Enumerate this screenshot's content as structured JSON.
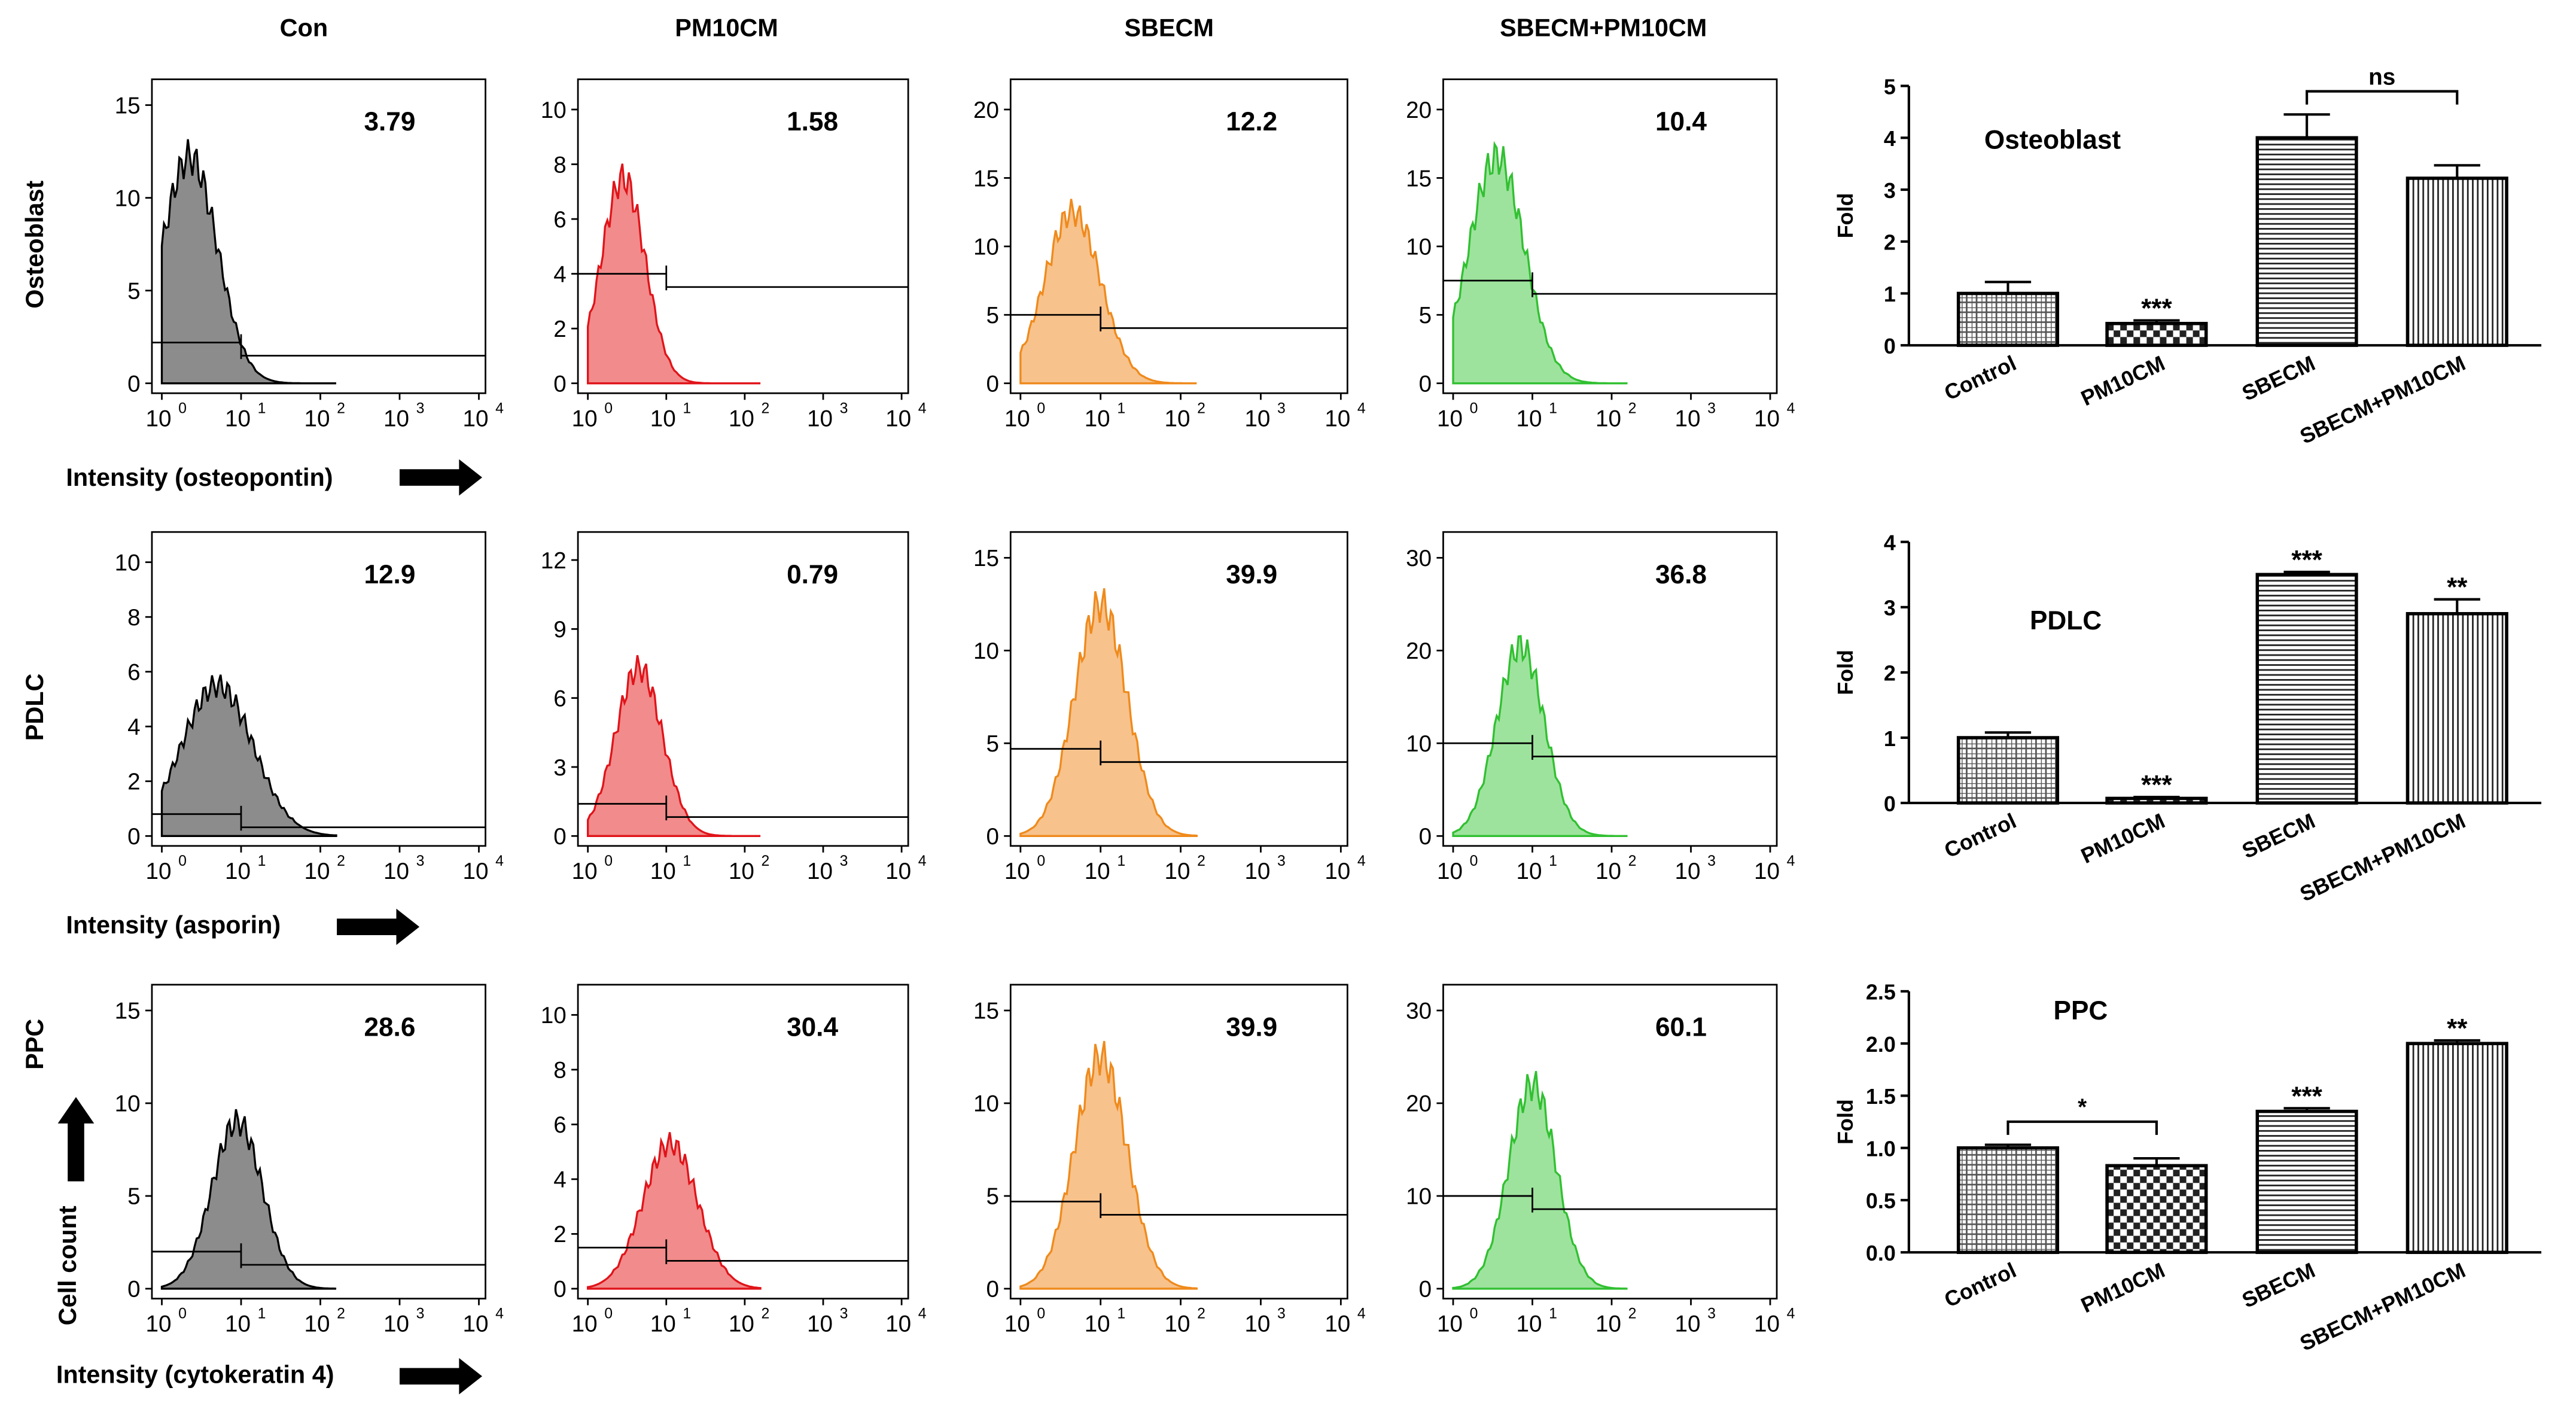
{
  "columns": [
    "Con",
    "PM10CM",
    "SBECM",
    "SBECM+PM10CM"
  ],
  "rows": [
    {
      "label": "Osteoblast",
      "xlabel": "Intensity (osteopontin)"
    },
    {
      "label": "PDLC",
      "xlabel": "Intensity (asporin)"
    },
    {
      "label": "PPC",
      "xlabel": "Intensity (cytokeratin 4)"
    }
  ],
  "cell_count_label": "Cell count",
  "x_ticks": [
    "10",
    "10",
    "10",
    "10",
    "10"
  ],
  "x_exponents": [
    "0",
    "1",
    "2",
    "3",
    "4"
  ],
  "colors": {
    "Con": "#8c8c8c",
    "PM10CM": "#f28b8b",
    "SBECM": "#f7c28c",
    "SBECM+PM10CM": "#9de39d"
  },
  "stroke_colors": {
    "Con": "#000000",
    "PM10CM": "#e0141a",
    "SBECM": "#ef8a1c",
    "SBECM+PM10CM": "#31c031"
  },
  "histograms": [
    [
      {
        "value": "3.79",
        "yticks": [
          "0",
          "5",
          "10",
          "15"
        ],
        "ymax": 15.5,
        "peak_log": 0.35,
        "peak": 12.2,
        "width": 0.35,
        "gate_y": 2.2
      },
      {
        "value": "1.58",
        "yticks": [
          "0",
          "2",
          "4",
          "6",
          "8",
          "10"
        ],
        "ymax": 10.5,
        "peak_log": 0.45,
        "peak": 7.5,
        "width": 0.28,
        "gate_y": 4.0
      },
      {
        "value": "12.2",
        "yticks": [
          "0",
          "5",
          "10",
          "15",
          "20"
        ],
        "ymax": 21,
        "peak_log": 0.65,
        "peak": 12.5,
        "width": 0.35,
        "gate_y": 5.0
      },
      {
        "value": "10.4",
        "yticks": [
          "0",
          "5",
          "10",
          "15",
          "20"
        ],
        "ymax": 21,
        "peak_log": 0.55,
        "peak": 16.5,
        "width": 0.35,
        "gate_y": 7.5
      }
    ],
    [
      {
        "value": "12.9",
        "yticks": [
          "0",
          "2",
          "4",
          "6",
          "8",
          "10"
        ],
        "ymax": 10.5,
        "peak_log": 0.7,
        "peak": 5.5,
        "width": 0.45,
        "gate_y": 0.8
      },
      {
        "value": "0.79",
        "yticks": [
          "0",
          "3",
          "6",
          "9",
          "12"
        ],
        "ymax": 12.5,
        "peak_log": 0.65,
        "peak": 7.3,
        "width": 0.3,
        "gate_y": 1.4
      },
      {
        "value": "39.9",
        "yticks": [
          "0",
          "5",
          "10",
          "15"
        ],
        "ymax": 15.5,
        "peak_log": 1.0,
        "peak": 12.5,
        "width": 0.33,
        "gate_y": 4.7
      },
      {
        "value": "36.8",
        "yticks": [
          "0",
          "10",
          "20",
          "30"
        ],
        "ymax": 31,
        "peak_log": 0.85,
        "peak": 20.5,
        "width": 0.3,
        "gate_y": 10.0
      }
    ],
    [
      {
        "value": "28.6",
        "yticks": [
          "0",
          "5",
          "10",
          "15"
        ],
        "ymax": 15.5,
        "peak_log": 0.95,
        "peak": 9.0,
        "width": 0.32,
        "gate_y": 2.0
      },
      {
        "value": "30.4",
        "yticks": [
          "0",
          "2",
          "4",
          "6",
          "8",
          "10"
        ],
        "ymax": 10.5,
        "peak_log": 1.05,
        "peak": 5.3,
        "width": 0.35,
        "gate_y": 1.5
      },
      {
        "value": "39.9",
        "yticks": [
          "0",
          "5",
          "10",
          "15"
        ],
        "ymax": 15.5,
        "peak_log": 1.0,
        "peak": 12.5,
        "width": 0.33,
        "gate_y": 4.7
      },
      {
        "value": "60.1",
        "yticks": [
          "0",
          "10",
          "20",
          "30"
        ],
        "ymax": 31,
        "peak_log": 1.0,
        "peak": 22.0,
        "width": 0.3,
        "gate_y": 10.0
      }
    ]
  ],
  "chart_data": [
    {
      "type": "bar",
      "title": "Osteoblast",
      "ylabel": "Fold",
      "categories": [
        "Control",
        "PM10CM",
        "SBECM",
        "SBECM+PM10CM"
      ],
      "values": [
        1.0,
        0.42,
        4.0,
        3.22
      ],
      "errors": [
        0.22,
        0.06,
        0.45,
        0.25
      ],
      "ylim": [
        0,
        5
      ],
      "yticks": [
        "0",
        "1",
        "2",
        "3",
        "4",
        "5"
      ],
      "significance": [
        "",
        "***",
        "",
        ""
      ],
      "brackets": [
        {
          "from": 2,
          "to": 3,
          "label": "ns"
        }
      ]
    },
    {
      "type": "bar",
      "title": "PDLC",
      "ylabel": "Fold",
      "categories": [
        "Control",
        "PM10CM",
        "SBECM",
        "SBECM+PM10CM"
      ],
      "values": [
        1.0,
        0.07,
        3.5,
        2.9
      ],
      "errors": [
        0.08,
        0.02,
        0.04,
        0.22
      ],
      "ylim": [
        0,
        4
      ],
      "yticks": [
        "0",
        "1",
        "2",
        "3",
        "4"
      ],
      "significance": [
        "",
        "***",
        "***",
        "**"
      ],
      "brackets": []
    },
    {
      "type": "bar",
      "title": "PPC",
      "ylabel": "Fold",
      "categories": [
        "Control",
        "PM10CM",
        "SBECM",
        "SBECM+PM10CM"
      ],
      "values": [
        1.0,
        0.83,
        1.35,
        2.0
      ],
      "errors": [
        0.03,
        0.07,
        0.03,
        0.03
      ],
      "ylim": [
        0,
        2.5
      ],
      "yticks": [
        "0.0",
        "0.5",
        "1.0",
        "1.5",
        "2.0",
        "2.5"
      ],
      "significance": [
        "",
        "",
        "***",
        "**"
      ],
      "brackets": [
        {
          "from": 0,
          "to": 1,
          "label": "*"
        }
      ]
    }
  ]
}
